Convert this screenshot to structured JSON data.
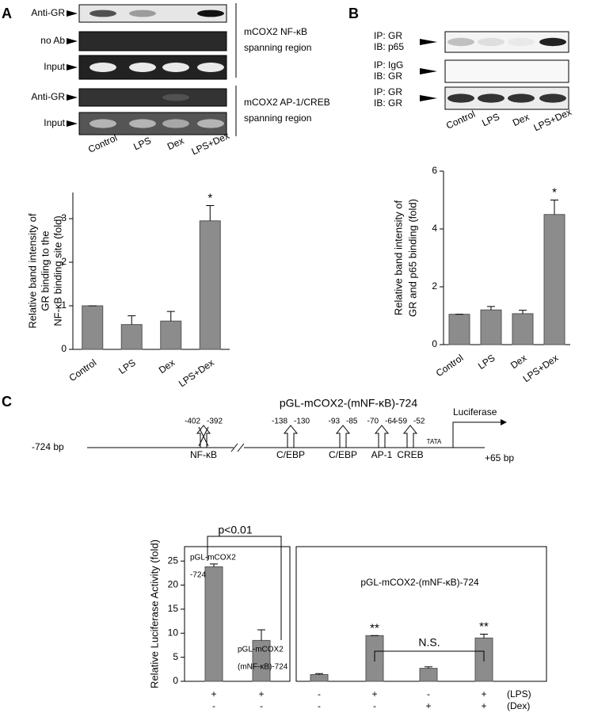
{
  "gels": [
    {
      "letter": "A",
      "rows": [
        [
          "Anti-GR"
        ],
        [
          "no Ab"
        ],
        [
          "Input"
        ],
        [
          "Anti-GR"
        ],
        [
          "Input"
        ]
      ],
      "brackets": [
        [
          "mCOX2 NF-κB",
          "spanning region"
        ],
        [
          "mCOX2 AP-1/CREB",
          "spanning region"
        ]
      ],
      "lanes": [
        "Control",
        "LPS",
        "Dex",
        "LPS+Dex"
      ]
    },
    {
      "letter": "B",
      "rows": [
        [
          "IP: GR",
          "IB: p65"
        ],
        [
          "IP: IgG",
          "IB: GR"
        ],
        [
          "IP: GR",
          "IB: GR"
        ]
      ],
      "lanes": [
        "Control",
        "LPS",
        "Dex",
        "LPS+Dex"
      ]
    }
  ],
  "diagram": {
    "letter": "C",
    "title": "pGL-mCOX2-(mNF-κB)-724",
    "start": "-724 bp",
    "end": "+65 bp",
    "reporter": "Luciferase",
    "tata": "TATA",
    "sites": [
      {
        "label": "NF-κB",
        "from": -402,
        "to": -392
      },
      {
        "label": "C/EBP",
        "from": -138,
        "to": -130
      },
      {
        "label": "C/EBP",
        "from": -93,
        "to": -85
      },
      {
        "label": "AP-1",
        "from": -70,
        "to": -64
      },
      {
        "label": "CREB",
        "from": -59,
        "to": -52
      }
    ]
  },
  "chart_data": [
    {
      "type": "bar",
      "ylabel": [
        "Relative band intensity of",
        "GR binding to the",
        "NF-κB binding site (fold)"
      ],
      "categories": [
        "Control",
        "LPS",
        "Dex",
        "LPS+Dex"
      ],
      "values": [
        1,
        0.57,
        0.65,
        2.95
      ],
      "errors": [
        0,
        0.2,
        0.22,
        0.35
      ],
      "star_labels": [
        null,
        null,
        null,
        "*"
      ],
      "color": "#8c8c8c",
      "ylim": [
        0,
        3.6
      ],
      "yticks": [
        0,
        1,
        2,
        3
      ]
    },
    {
      "type": "bar",
      "ylabel": [
        "Relative band intensity of",
        "GR and p65 binding (fold)"
      ],
      "categories": [
        "Control",
        "LPS",
        "Dex",
        "LPS+Dex"
      ],
      "values": [
        1.05,
        1.2,
        1.07,
        4.5
      ],
      "errors": [
        0,
        0.12,
        0.12,
        0.5
      ],
      "star_labels": [
        null,
        null,
        null,
        "*"
      ],
      "color": "#8c8c8c",
      "ylim": [
        0,
        6
      ],
      "yticks": [
        0,
        2,
        4,
        6
      ]
    },
    {
      "type": "bar",
      "ylabel": [
        "Relative Luciferase Activity (fold)"
      ],
      "values": [
        23.8,
        8.5
      ],
      "errors": [
        0.6,
        2.2
      ],
      "bar_labels": [
        [
          "pGL-mCOX2",
          "-724"
        ],
        [
          "pGL-mCOX2",
          "(mNF-κB)-724"
        ]
      ],
      "annotation": "p<0.01",
      "lps": [
        "+",
        "+"
      ],
      "dex": [
        "-",
        "-"
      ],
      "color": "#8c8c8c",
      "ylim": [
        0,
        28
      ],
      "yticks": [
        0,
        5,
        10,
        15,
        20,
        25
      ]
    },
    {
      "type": "bar",
      "subtitle": "pGL-mCOX2-(mNF-κB)-724",
      "values": [
        1.4,
        9.5,
        2.7,
        9
      ],
      "errors": [
        0.2,
        0,
        0.3,
        0.8
      ],
      "star_labels": [
        null,
        "**",
        null,
        "**"
      ],
      "annotation": "N.S.",
      "lps": [
        "-",
        "+",
        "-",
        "+"
      ],
      "dex": [
        "-",
        "-",
        "+",
        "+"
      ],
      "row_labels": [
        "(LPS)",
        "(Dex)"
      ],
      "color": "#8c8c8c",
      "ylim": [
        0,
        28
      ]
    }
  ]
}
